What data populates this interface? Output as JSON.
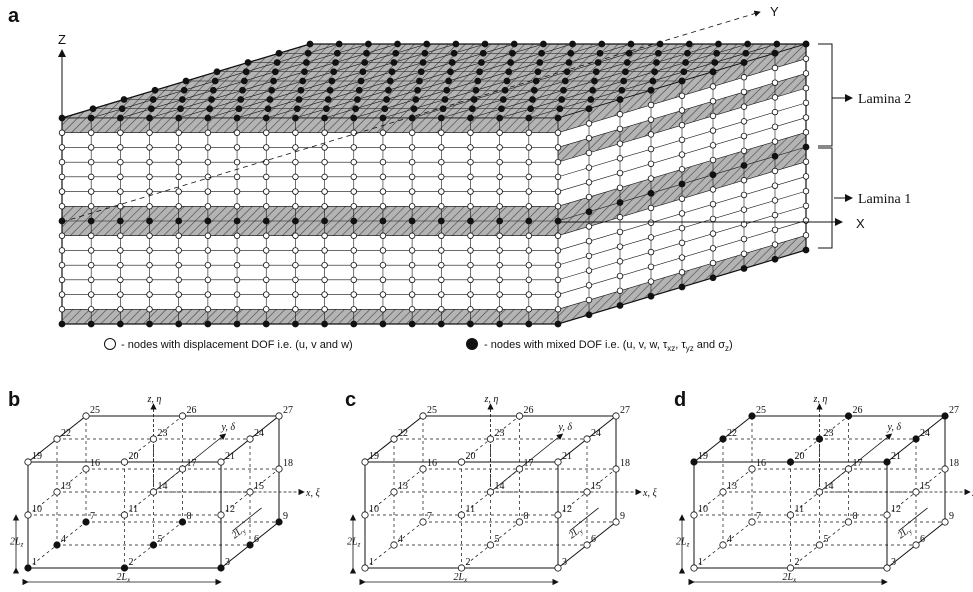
{
  "figure": {
    "panel_a": {
      "letter": "a",
      "axes": {
        "z": "Z",
        "y": "Y",
        "x": "X"
      },
      "lamina_labels": [
        "Lamina 2",
        "Lamina 1"
      ]
    },
    "legend": {
      "open_node_text": "- nodes with displacement DOF i.e. (u, v and w)",
      "filled_node_prefix": "- nodes with mixed DOF i.e. (u, v, w, ",
      "tau_xz": "τ",
      "tau_xz_sub": "xz",
      "tau_yz": "τ",
      "tau_yz_sub": "yz",
      "sigma_z": "σ",
      "sigma_z_sub": "z",
      "filled_node_suffix": ")",
      "sep1": ", ",
      "sep2": " and "
    },
    "element_panels": [
      {
        "letter": "b",
        "filled_nodes": [
          1,
          2,
          3,
          4,
          5,
          6,
          7,
          8,
          9
        ]
      },
      {
        "letter": "c",
        "filled_nodes": []
      },
      {
        "letter": "d",
        "filled_nodes": [
          19,
          20,
          21,
          22,
          23,
          24,
          25,
          26,
          27
        ]
      }
    ],
    "element_axes": {
      "z": "z, η",
      "y": "y, δ",
      "x": "x, ξ"
    },
    "element_dims": {
      "lz": "2L",
      "lz_sub": "z",
      "ly": "2L",
      "ly_sub": "y",
      "lx": "2L",
      "lx_sub": "x"
    },
    "node_numbers": [
      "1",
      "2",
      "3",
      "4",
      "5",
      "6",
      "7",
      "8",
      "9",
      "10",
      "11",
      "12",
      "13",
      "14",
      "15",
      "16",
      "17",
      "18",
      "19",
      "20",
      "21",
      "22",
      "23",
      "24",
      "25",
      "26",
      "27"
    ],
    "colors": {
      "ink": "#111111",
      "shade": "#b4b4b4",
      "paper": "#ffffff"
    }
  }
}
